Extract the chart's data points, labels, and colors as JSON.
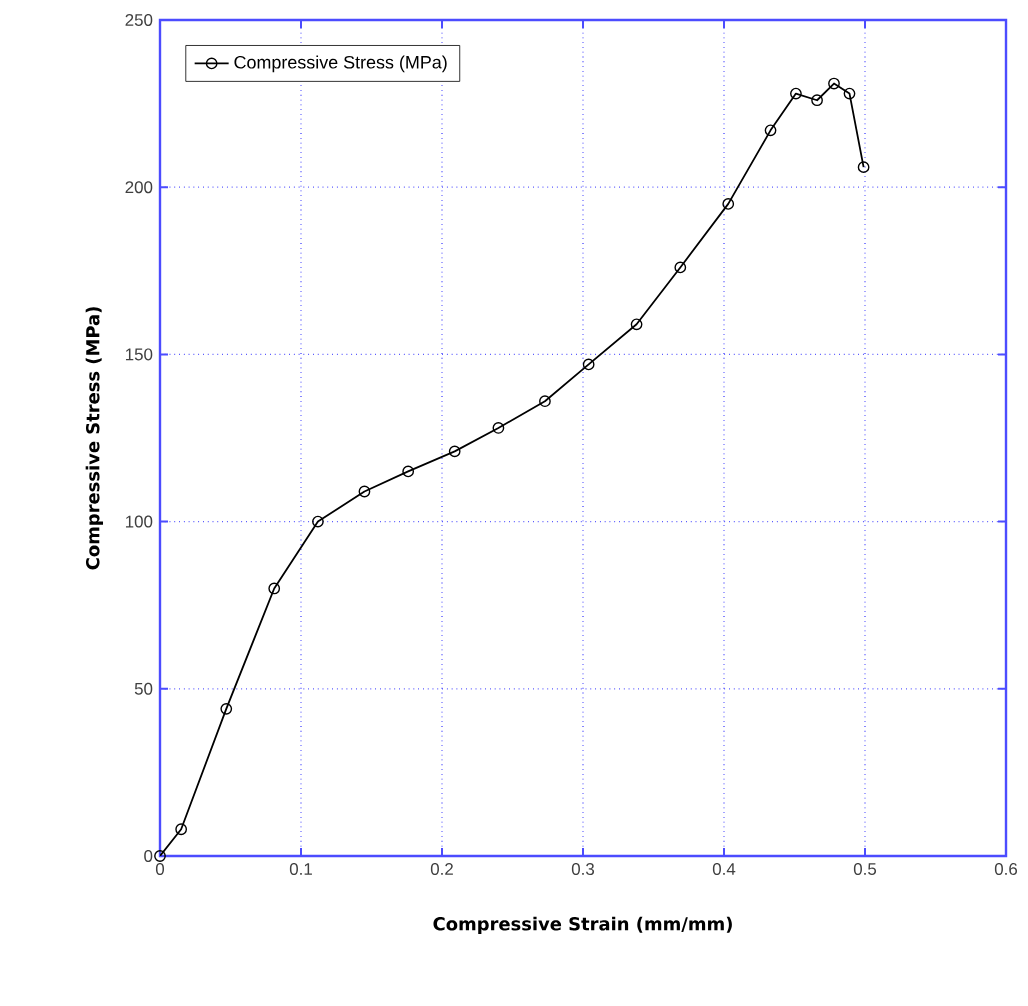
{
  "chart_data": {
    "type": "line",
    "xlabel": "Compressive Strain (mm/mm)",
    "ylabel": "Compressive Stress (MPa)",
    "xlim": [
      0,
      0.6
    ],
    "xticks": [
      0,
      0.1,
      0.2,
      0.3,
      0.4,
      0.5,
      0.6
    ],
    "ylim": [
      0,
      250
    ],
    "yticks": [
      0,
      50,
      100,
      150,
      200,
      250
    ],
    "grid": true,
    "legend": "top left",
    "marker": "circle",
    "line_style": "solid",
    "series": [
      {
        "name": "Compressive Stress (MPa)",
        "color": "#000000",
        "x": [
          0,
          0.015,
          0.047,
          0.081,
          0.112,
          0.145,
          0.176,
          0.209,
          0.24,
          0.273,
          0.304,
          0.338,
          0.369,
          0.403,
          0.433,
          0.451,
          0.466,
          0.478,
          0.489,
          0.499
        ],
        "values": [
          0,
          8,
          44,
          80,
          100,
          109,
          115,
          121,
          128,
          136,
          147,
          159,
          176,
          195,
          217,
          228,
          226,
          231,
          228,
          206
        ]
      }
    ]
  }
}
